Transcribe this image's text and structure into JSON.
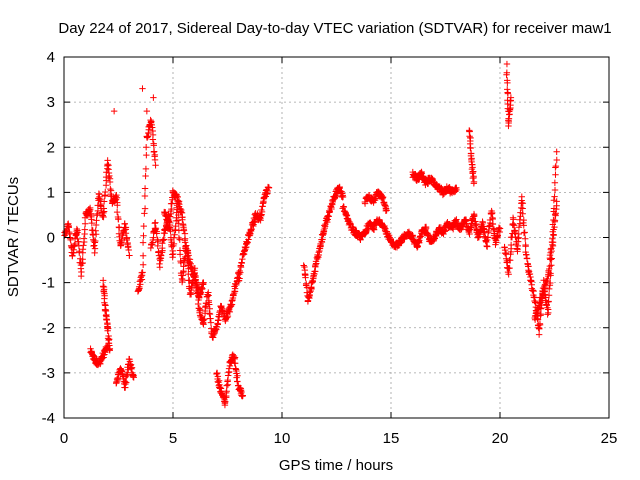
{
  "chart_data": {
    "type": "scatter",
    "title": "Day 224 of 2017, Sidereal Day-to-day VTEC variation (SDTVAR) for receiver maw1",
    "xlabel": "GPS time / hours",
    "ylabel": "SDTVAR / TECUs",
    "xlim": [
      0,
      25
    ],
    "ylim": [
      -4,
      4
    ],
    "xticks": [
      0,
      5,
      10,
      15,
      20,
      25
    ],
    "yticks": [
      -4,
      -3,
      -2,
      -1,
      0,
      1,
      2,
      3,
      4
    ],
    "grid": true,
    "marker": "+",
    "color": "#ff0000",
    "series": [
      {
        "name": "SDTVAR",
        "segments": [
          {
            "x": [
              0.0,
              0.2,
              0.4,
              0.6,
              0.8,
              1.0,
              1.2,
              1.4,
              1.6,
              1.8,
              2.0,
              2.2,
              2.4,
              2.6,
              2.8,
              3.0
            ],
            "y": [
              0.0,
              0.3,
              -0.4,
              0.2,
              -0.8,
              0.5,
              0.6,
              -0.3,
              1.0,
              0.4,
              1.7,
              0.8,
              0.9,
              -0.2,
              0.3,
              -0.4
            ]
          },
          {
            "x": [
              1.2,
              1.4,
              1.6,
              1.8,
              2.0
            ],
            "y": [
              -2.5,
              -2.7,
              -2.8,
              -2.6,
              -2.4
            ]
          },
          {
            "x": [
              2.4,
              2.6,
              2.8,
              3.0,
              3.2
            ],
            "y": [
              -3.2,
              -2.9,
              -3.3,
              -2.7,
              -3.1
            ]
          },
          {
            "x": [
              1.8,
              1.9,
              2.0,
              2.1
            ],
            "y": [
              -1.0,
              -1.6,
              -2.0,
              -2.5
            ]
          },
          {
            "x": [
              3.4,
              3.6,
              3.8,
              4.0,
              4.2
            ],
            "y": [
              -1.2,
              -0.8,
              2.2,
              2.6,
              1.6
            ]
          },
          {
            "x": [
              4.0,
              4.2,
              4.4,
              4.6,
              4.8,
              5.0,
              5.2,
              5.4,
              5.6,
              5.8,
              6.0,
              6.2,
              6.4,
              6.6,
              6.8,
              7.0,
              7.2,
              7.4,
              7.6,
              7.8,
              8.0
            ],
            "y": [
              -0.2,
              0.3,
              -0.6,
              0.1,
              0.5,
              -0.4,
              0.8,
              -1.0,
              -0.2,
              -1.3,
              -0.7,
              -1.6,
              -1.9,
              -1.2,
              -2.2,
              -2.0,
              -1.5,
              -1.8,
              -1.6,
              -1.2,
              -0.8
            ]
          },
          {
            "x": [
              4.6,
              4.8,
              5.0,
              5.2,
              5.4,
              5.6,
              5.8,
              6.0,
              6.2,
              6.4
            ],
            "y": [
              0.6,
              0.2,
              1.0,
              0.9,
              0.5,
              -0.2,
              -0.6,
              -0.9,
              -1.3,
              -1.0
            ]
          },
          {
            "x": [
              7.0,
              7.2,
              7.4,
              7.6,
              7.8,
              8.0,
              8.2
            ],
            "y": [
              -3.0,
              -3.4,
              -3.7,
              -2.8,
              -2.6,
              -3.3,
              -3.5
            ]
          },
          {
            "x": [
              8.0,
              8.2,
              8.4,
              8.6,
              8.8,
              9.0,
              9.2,
              9.4
            ],
            "y": [
              -1.0,
              -0.4,
              -0.1,
              0.2,
              0.5,
              0.4,
              0.9,
              1.1
            ]
          },
          {
            "x": [
              11.0,
              11.2,
              11.4,
              11.6,
              11.8,
              12.0,
              12.2,
              12.4,
              12.6,
              12.8
            ],
            "y": [
              -0.6,
              -1.4,
              -1.0,
              -0.5,
              -0.1,
              0.3,
              0.6,
              0.9,
              1.1,
              0.9
            ]
          },
          {
            "x": [
              12.8,
              13.0,
              13.2,
              13.4,
              13.6,
              13.8,
              14.0,
              14.2,
              14.4,
              14.6,
              14.8,
              15.0,
              15.2,
              15.4
            ],
            "y": [
              0.7,
              0.4,
              0.2,
              0.1,
              0.0,
              0.1,
              0.3,
              0.2,
              0.4,
              0.3,
              0.1,
              -0.1,
              -0.2,
              -0.1
            ]
          },
          {
            "x": [
              13.8,
              14.0,
              14.2,
              14.4,
              14.6,
              14.8
            ],
            "y": [
              0.8,
              0.9,
              0.8,
              1.0,
              0.9,
              0.6
            ]
          },
          {
            "x": [
              15.4,
              15.6,
              15.8,
              16.0,
              16.2,
              16.4,
              16.6,
              16.8,
              17.0,
              17.2,
              17.4,
              17.6,
              17.8,
              18.0
            ],
            "y": [
              -0.1,
              0.0,
              0.1,
              0.0,
              -0.2,
              0.1,
              0.2,
              -0.1,
              0.0,
              0.2,
              0.1,
              0.3,
              0.2,
              0.4
            ]
          },
          {
            "x": [
              16.0,
              16.2,
              16.4,
              16.6,
              16.8,
              17.0,
              17.2,
              17.4,
              17.6,
              17.8,
              18.0
            ],
            "y": [
              1.4,
              1.3,
              1.4,
              1.2,
              1.3,
              1.2,
              1.1,
              1.0,
              1.1,
              1.0,
              1.1
            ]
          },
          {
            "x": [
              18.0,
              18.2,
              18.4,
              18.6,
              18.8,
              19.0,
              19.2,
              19.4,
              19.6,
              19.8,
              20.0
            ],
            "y": [
              0.3,
              0.2,
              0.4,
              0.1,
              0.5,
              0.0,
              0.3,
              -0.2,
              0.6,
              -0.1,
              0.2
            ]
          },
          {
            "x": [
              18.6,
              18.7,
              18.8
            ],
            "y": [
              2.4,
              1.7,
              1.2
            ]
          },
          {
            "x": [
              20.2,
              20.4,
              20.6,
              20.8,
              21.0,
              21.2,
              21.4,
              21.6,
              21.8,
              22.0,
              22.2,
              22.4,
              22.6
            ],
            "y": [
              -0.2,
              -0.8,
              0.4,
              -0.3,
              0.9,
              -0.4,
              -0.9,
              -1.4,
              -2.1,
              -1.0,
              -1.7,
              -0.2,
              0.8
            ]
          },
          {
            "x": [
              21.6,
              21.8,
              22.0,
              22.2,
              22.4,
              22.6
            ],
            "y": [
              -1.8,
              -1.5,
              -1.2,
              -0.9,
              0.0,
              1.9
            ]
          },
          {
            "x": [
              20.3,
              20.4,
              20.5
            ],
            "y": [
              3.8,
              2.5,
              3.1
            ]
          }
        ],
        "outliers": {
          "x": [
            2.3,
            3.6,
            3.8,
            4.1
          ],
          "y": [
            2.8,
            3.3,
            2.8,
            3.1
          ]
        }
      }
    ]
  }
}
